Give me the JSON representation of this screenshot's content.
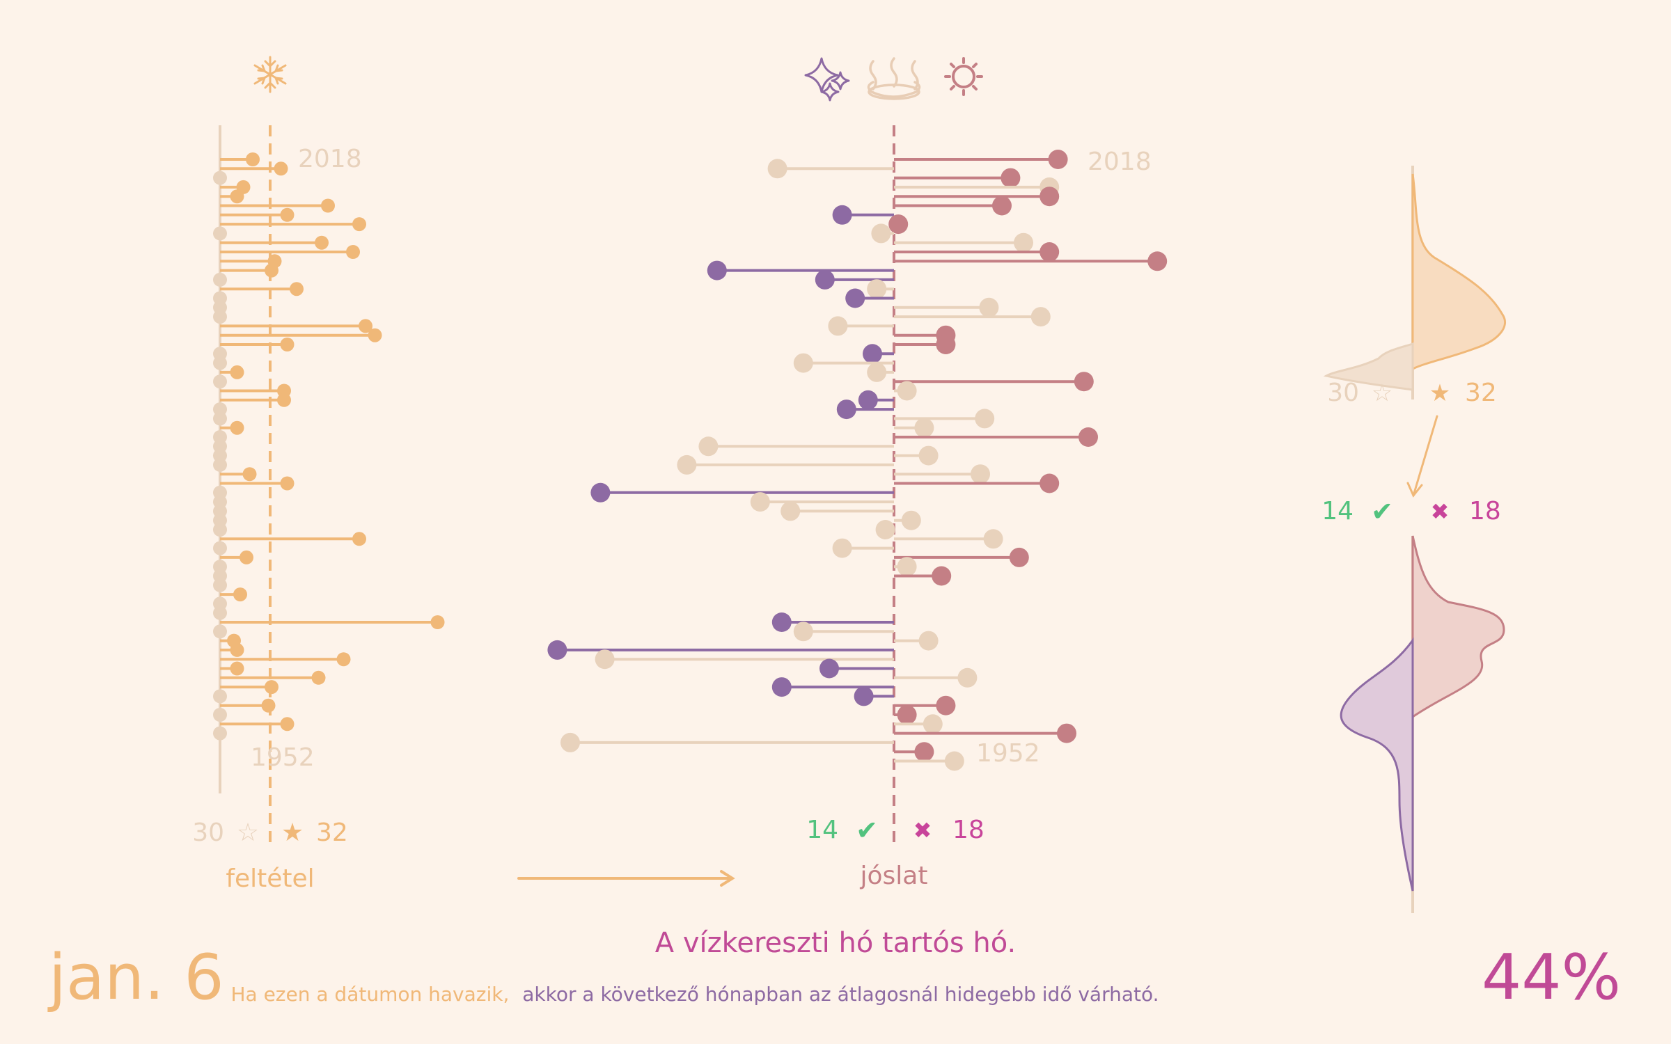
{
  "date": "jan. 6",
  "percent": "44%",
  "saying": "A vízkereszti hó tartós hó.",
  "explanation_condition": "Ha ezen a dátumon havazik,",
  "explanation_prediction": "akkor a következő hónapban az átlagosnál hidegebb idő várható.",
  "left_panel": {
    "caption": "feltétel",
    "year_top": "2018",
    "year_bottom": "1952",
    "count_false": "30",
    "count_true": "32",
    "star_empty": "☆",
    "star_full": "★"
  },
  "middle_panel": {
    "caption": "jóslat",
    "year_top": "2018",
    "year_bottom": "1952",
    "count_correct": "14",
    "count_wrong": "18",
    "check": "✔",
    "cross": "✖"
  },
  "right_panel": {
    "count_false": "30",
    "count_true": "32",
    "count_correct": "14",
    "count_wrong": "18",
    "star_empty": "☆",
    "star_full": "★",
    "check": "✔",
    "cross": "✖"
  },
  "icons": {
    "condition": "snowflake-icon",
    "prediction": [
      "sparkles-icon",
      "hot-springs-icon",
      "sun-icon"
    ]
  },
  "colors": {
    "background": "#fdf3ea",
    "condition_true": "#f0b878",
    "condition_false": "#e8d2bc",
    "prediction_cold": "#8d6aa3",
    "prediction_warm": "#c47f85",
    "prediction_neutral": "#e8d2bc",
    "correct": "#52c27e",
    "wrong": "#c8449a",
    "title": "#c04a96",
    "date": "#f0b878"
  },
  "chart_data": [
    {
      "type": "scatter",
      "title": "feltétel",
      "description_source": "condition by year",
      "y_years": [
        2018,
        1952
      ],
      "rows": [
        {
          "year": 2018,
          "snow": true,
          "value": 0.6
        },
        {
          "year": 2017,
          "snow": true,
          "value": 1.5
        },
        {
          "year": 2016,
          "snow": false,
          "value": 0
        },
        {
          "year": 2015,
          "snow": true,
          "value": 0.3
        },
        {
          "year": 2014,
          "snow": true,
          "value": 0.1
        },
        {
          "year": 2013,
          "snow": true,
          "value": 3.0
        },
        {
          "year": 2012,
          "snow": true,
          "value": 1.7
        },
        {
          "year": 2011,
          "snow": true,
          "value": 4.0
        },
        {
          "year": 2010,
          "snow": false,
          "value": 0
        },
        {
          "year": 2009,
          "snow": true,
          "value": 2.8
        },
        {
          "year": 2008,
          "snow": true,
          "value": 3.8
        },
        {
          "year": 2007,
          "snow": true,
          "value": 1.3
        },
        {
          "year": 2006,
          "snow": true,
          "value": 1.2
        },
        {
          "year": 2005,
          "snow": false,
          "value": 0
        },
        {
          "year": 2004,
          "snow": true,
          "value": 2.0
        },
        {
          "year": 2003,
          "snow": false,
          "value": 0
        },
        {
          "year": 2002,
          "snow": false,
          "value": 0
        },
        {
          "year": 2001,
          "snow": false,
          "value": 0
        },
        {
          "year": 2000,
          "snow": true,
          "value": 4.2
        },
        {
          "year": 1999,
          "snow": true,
          "value": 4.5
        },
        {
          "year": 1998,
          "snow": true,
          "value": 1.7
        },
        {
          "year": 1997,
          "snow": false,
          "value": 0
        },
        {
          "year": 1996,
          "snow": false,
          "value": 0
        },
        {
          "year": 1995,
          "snow": true,
          "value": 0.1
        },
        {
          "year": 1994,
          "snow": false,
          "value": 0
        },
        {
          "year": 1993,
          "snow": true,
          "value": 1.6
        },
        {
          "year": 1992,
          "snow": true,
          "value": 1.6
        },
        {
          "year": 1991,
          "snow": false,
          "value": 0
        },
        {
          "year": 1990,
          "snow": false,
          "value": 0
        },
        {
          "year": 1989,
          "snow": true,
          "value": 0.1
        },
        {
          "year": 1988,
          "snow": false,
          "value": 0
        },
        {
          "year": 1987,
          "snow": false,
          "value": 0
        },
        {
          "year": 1986,
          "snow": false,
          "value": 0
        },
        {
          "year": 1985,
          "snow": false,
          "value": 0
        },
        {
          "year": 1984,
          "snow": true,
          "value": 0.5
        },
        {
          "year": 1983,
          "snow": true,
          "value": 1.7
        },
        {
          "year": 1982,
          "snow": false,
          "value": 0
        },
        {
          "year": 1981,
          "snow": false,
          "value": 0
        },
        {
          "year": 1980,
          "snow": false,
          "value": 0
        },
        {
          "year": 1979,
          "snow": false,
          "value": 0
        },
        {
          "year": 1978,
          "snow": false,
          "value": 0
        },
        {
          "year": 1977,
          "snow": true,
          "value": 4.0
        },
        {
          "year": 1976,
          "snow": false,
          "value": 0
        },
        {
          "year": 1975,
          "snow": true,
          "value": 0.4
        },
        {
          "year": 1974,
          "snow": false,
          "value": 0
        },
        {
          "year": 1973,
          "snow": false,
          "value": 0
        },
        {
          "year": 1972,
          "snow": false,
          "value": 0
        },
        {
          "year": 1971,
          "snow": true,
          "value": 0.2
        },
        {
          "year": 1970,
          "snow": false,
          "value": 0
        },
        {
          "year": 1969,
          "snow": false,
          "value": 0
        },
        {
          "year": 1968,
          "snow": true,
          "value": 6.5
        },
        {
          "year": 1967,
          "snow": false,
          "value": 0
        },
        {
          "year": 1966,
          "snow": true,
          "value": 0
        },
        {
          "year": 1965,
          "snow": true,
          "value": 0.1
        },
        {
          "year": 1964,
          "snow": true,
          "value": 3.5
        },
        {
          "year": 1963,
          "snow": true,
          "value": 0.1
        },
        {
          "year": 1962,
          "snow": true,
          "value": 2.7
        },
        {
          "year": 1961,
          "snow": true,
          "value": 1.2
        },
        {
          "year": 1960,
          "snow": false,
          "value": 0
        },
        {
          "year": 1959,
          "snow": true,
          "value": 1.1
        },
        {
          "year": 1958,
          "snow": false,
          "value": 0
        },
        {
          "year": 1957,
          "snow": true,
          "value": 1.7
        },
        {
          "year": 1956,
          "snow": false,
          "value": 0
        }
      ],
      "counts": {
        "no_snow": 30,
        "snow": 32
      }
    },
    {
      "type": "scatter",
      "title": "jóslat",
      "rows": [
        {
          "year": 2018,
          "v": 3.8,
          "snow": true
        },
        {
          "year": 2017,
          "v": -2.7,
          "snow": false
        },
        {
          "year": 2016,
          "v": 2.7,
          "snow": true
        },
        {
          "year": 2015,
          "v": 3.6,
          "snow": false
        },
        {
          "year": 2014,
          "v": 3.6,
          "snow": true
        },
        {
          "year": 2013,
          "v": 2.5,
          "snow": true
        },
        {
          "year": 2012,
          "v": -1.2,
          "snow": true
        },
        {
          "year": 2011,
          "v": 0.1,
          "snow": true
        },
        {
          "year": 2010,
          "v": -0.3,
          "snow": false
        },
        {
          "year": 2009,
          "v": 3.0,
          "snow": false
        },
        {
          "year": 2008,
          "v": 3.6,
          "snow": true
        },
        {
          "year": 2007,
          "v": 6.1,
          "snow": true
        },
        {
          "year": 2006,
          "v": -4.1,
          "snow": true
        },
        {
          "year": 2005,
          "v": -1.6,
          "snow": true
        },
        {
          "year": 2004,
          "v": -0.4,
          "snow": false
        },
        {
          "year": 2003,
          "v": -0.9,
          "snow": true
        },
        {
          "year": 2002,
          "v": 2.2,
          "snow": false
        },
        {
          "year": 2001,
          "v": 3.4,
          "snow": false
        },
        {
          "year": 2000,
          "v": -1.3,
          "snow": false
        },
        {
          "year": 1999,
          "v": 1.2,
          "snow": true
        },
        {
          "year": 1998,
          "v": 1.2,
          "snow": true
        },
        {
          "year": 1997,
          "v": -0.5,
          "snow": true
        },
        {
          "year": 1996,
          "v": -2.1,
          "snow": false
        },
        {
          "year": 1995,
          "v": -0.4,
          "snow": false
        },
        {
          "year": 1994,
          "v": 4.4,
          "snow": true
        },
        {
          "year": 1993,
          "v": 0.3,
          "snow": false
        },
        {
          "year": 1992,
          "v": -0.6,
          "snow": true
        },
        {
          "year": 1991,
          "v": -1.1,
          "snow": true
        },
        {
          "year": 1990,
          "v": 2.1,
          "snow": false
        },
        {
          "year": 1989,
          "v": 0.7,
          "snow": false
        },
        {
          "year": 1988,
          "v": 4.5,
          "snow": true
        },
        {
          "year": 1987,
          "v": -4.3,
          "snow": false
        },
        {
          "year": 1986,
          "v": 0.8,
          "snow": false
        },
        {
          "year": 1985,
          "v": -4.8,
          "snow": false
        },
        {
          "year": 1984,
          "v": 2.0,
          "snow": false
        },
        {
          "year": 1983,
          "v": 3.6,
          "snow": true
        },
        {
          "year": 1982,
          "v": -6.8,
          "snow": true
        },
        {
          "year": 1981,
          "v": -3.1,
          "snow": false
        },
        {
          "year": 1980,
          "v": -2.4,
          "snow": false
        },
        {
          "year": 1979,
          "v": 0.4,
          "snow": false
        },
        {
          "year": 1978,
          "v": -0.2,
          "snow": false
        },
        {
          "year": 1977,
          "v": 2.3,
          "snow": false
        },
        {
          "year": 1976,
          "v": -1.2,
          "snow": false
        },
        {
          "year": 1975,
          "v": 2.9,
          "snow": true
        },
        {
          "year": 1974,
          "v": 0.3,
          "snow": false
        },
        {
          "year": 1973,
          "v": 1.1,
          "snow": true
        },
        {
          "year": 1968,
          "v": -2.6,
          "snow": true
        },
        {
          "year": 1967,
          "v": -2.1,
          "snow": false
        },
        {
          "year": 1966,
          "v": 0.8,
          "snow": false
        },
        {
          "year": 1965,
          "v": -7.8,
          "snow": true
        },
        {
          "year": 1964,
          "v": -6.7,
          "snow": false
        },
        {
          "year": 1963,
          "v": -1.5,
          "snow": true
        },
        {
          "year": 1962,
          "v": 1.7,
          "snow": false
        },
        {
          "year": 1961,
          "v": -2.6,
          "snow": true
        },
        {
          "year": 1960,
          "v": -0.7,
          "snow": true
        },
        {
          "year": 1959,
          "v": 1.2,
          "snow": true
        },
        {
          "year": 1958,
          "v": 0.3,
          "snow": true
        },
        {
          "year": 1957,
          "v": 0.9,
          "snow": false
        },
        {
          "year": 1956,
          "v": 4.0,
          "snow": true
        },
        {
          "year": 1955,
          "v": -7.5,
          "snow": false
        },
        {
          "year": 1954,
          "v": 0.7,
          "snow": true
        },
        {
          "year": 1953,
          "v": 1.4,
          "snow": false
        }
      ],
      "counts": {
        "correct": 14,
        "wrong": 18
      }
    }
  ]
}
